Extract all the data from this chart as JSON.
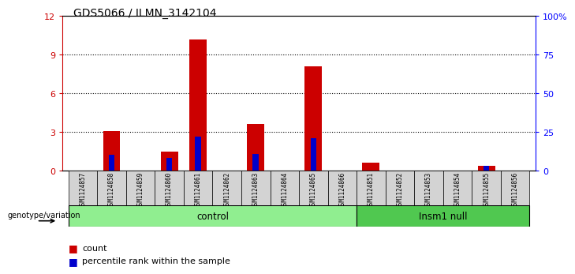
{
  "title": "GDS5066 / ILMN_3142104",
  "samples": [
    "GSM1124857",
    "GSM1124858",
    "GSM1124859",
    "GSM1124860",
    "GSM1124861",
    "GSM1124862",
    "GSM1124863",
    "GSM1124864",
    "GSM1124865",
    "GSM1124866",
    "GSM1124851",
    "GSM1124852",
    "GSM1124853",
    "GSM1124854",
    "GSM1124855",
    "GSM1124856"
  ],
  "counts": [
    0,
    3.1,
    0,
    1.5,
    10.2,
    0,
    3.6,
    0,
    8.1,
    0,
    0.6,
    0,
    0,
    0,
    0.4,
    0
  ],
  "percentile_ranks": [
    0,
    10.5,
    0,
    8.0,
    22.0,
    0,
    11.0,
    0,
    21.0,
    0,
    0,
    0,
    0,
    0,
    3.0,
    0
  ],
  "groups": [
    {
      "label": "control",
      "start": 0,
      "end": 9,
      "color": "#90ee90"
    },
    {
      "label": "Insm1 null",
      "start": 10,
      "end": 15,
      "color": "#50c850"
    }
  ],
  "ylim_left": [
    0,
    12
  ],
  "ylim_right": [
    0,
    100
  ],
  "yticks_left": [
    0,
    3,
    6,
    9,
    12
  ],
  "yticks_right": [
    0,
    25,
    50,
    75,
    100
  ],
  "yticklabels_right": [
    "0",
    "25",
    "50",
    "75",
    "100%"
  ],
  "bar_color": "#cc0000",
  "percentile_color": "#0000cc",
  "sample_bg_color": "#d3d3d3",
  "legend_count_label": "count",
  "legend_percentile_label": "percentile rank within the sample",
  "genotype_label": "genotype/variation"
}
